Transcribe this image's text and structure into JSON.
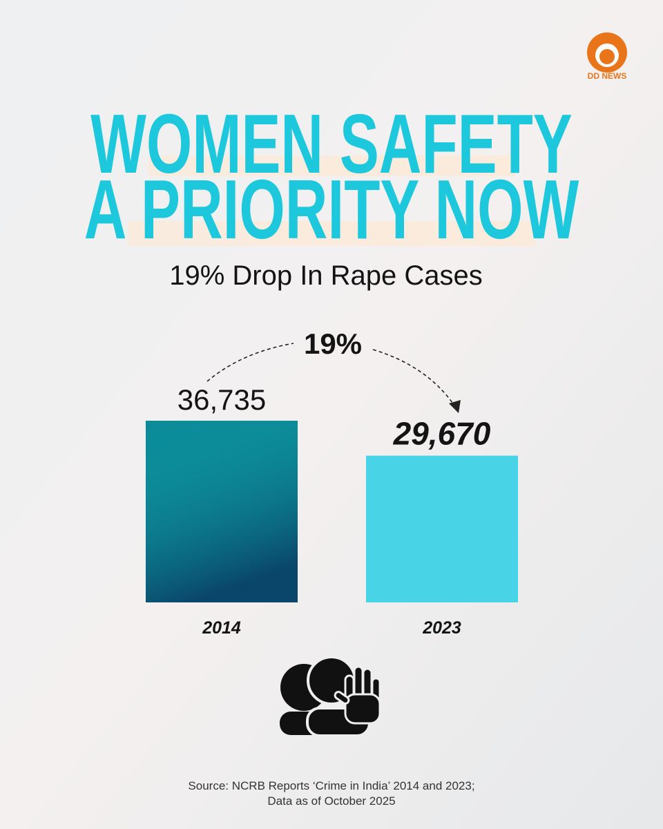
{
  "chart_data": {
    "type": "bar",
    "logo": "DD NEWS",
    "title": [
      "WOMEN SAFETY",
      "A PRIORITY NOW"
    ],
    "subtitle": "19% Drop In Rape Cases",
    "annotation": "19%",
    "categories": [
      "2014",
      "2023"
    ],
    "values": [
      36735,
      29670
    ],
    "value_labels": [
      "36,735",
      "29,670"
    ],
    "colors": [
      "#0b8a98",
      "#48d3e6"
    ],
    "source": [
      "Source: NCRB Reports ‘Crime in India’ 2014 and 2023;",
      "Data as of October 2025"
    ]
  }
}
